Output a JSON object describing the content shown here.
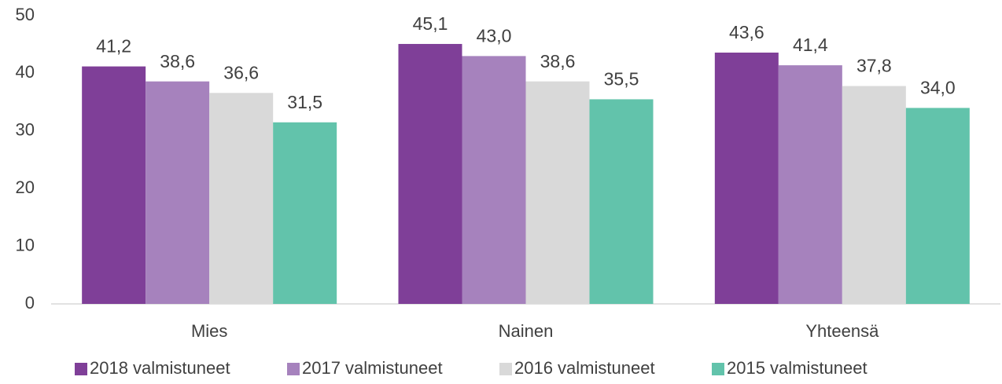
{
  "chart_data": {
    "type": "bar",
    "categories": [
      "Mies",
      "Nainen",
      "Yhteensä"
    ],
    "series": [
      {
        "name": "2018 valmistuneet",
        "color": "#7f3f98",
        "values": [
          41.2,
          45.1,
          43.6
        ],
        "value_labels": [
          "41,2",
          "45,1",
          "43,6"
        ]
      },
      {
        "name": "2017 valmistuneet",
        "color": "#a682bd",
        "values": [
          38.6,
          43.0,
          41.4
        ],
        "value_labels": [
          "38,6",
          "43,0",
          "41,4"
        ]
      },
      {
        "name": "2016 valmistuneet",
        "color": "#d9d9d9",
        "values": [
          36.6,
          38.6,
          37.8
        ],
        "value_labels": [
          "36,6",
          "38,6",
          "37,8"
        ]
      },
      {
        "name": "2015 valmistuneet",
        "color": "#62c3ab",
        "values": [
          31.5,
          35.5,
          34.0
        ],
        "value_labels": [
          "31,5",
          "35,5",
          "34,0"
        ]
      }
    ],
    "ylim": [
      0,
      50
    ],
    "yticks": [
      0,
      10,
      20,
      30,
      40,
      50
    ],
    "grid": false,
    "legend": "bottom"
  }
}
